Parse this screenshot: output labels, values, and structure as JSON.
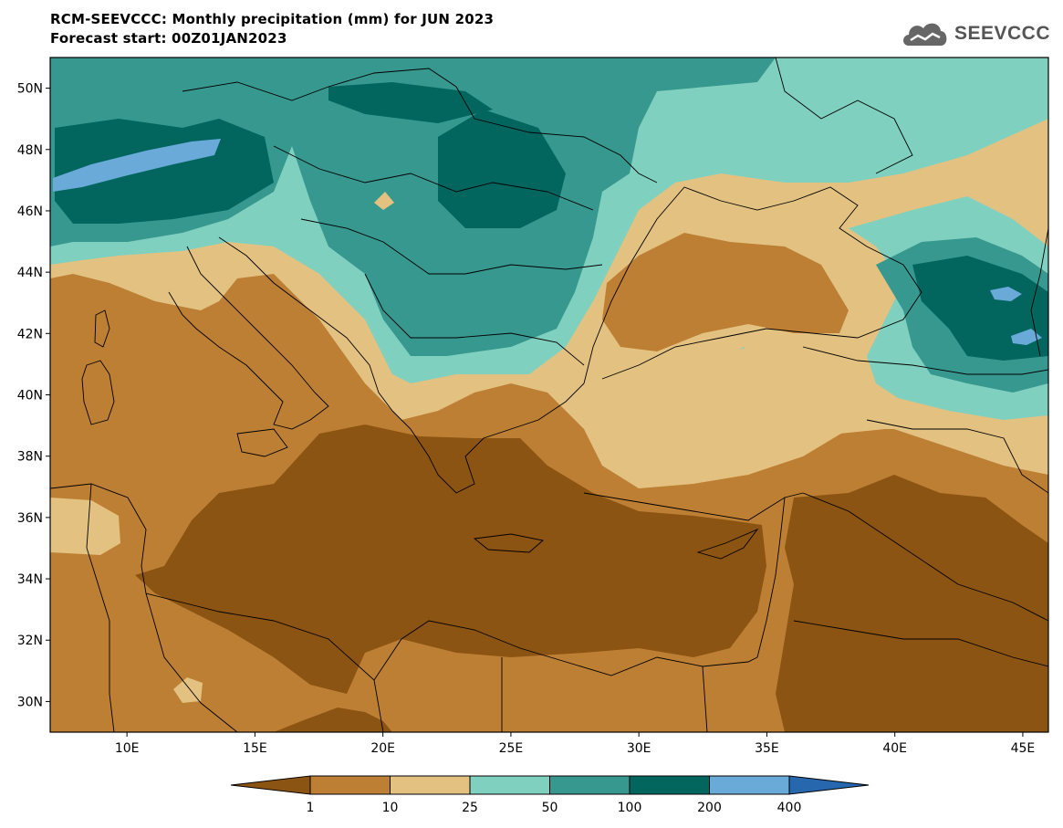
{
  "title_line1": "RCM-SEEVCCC: Monthly precipitation (mm) for JUN 2023",
  "title_line2": "Forecast start: 00Z01JAN2023",
  "logo_text": "SEEVCCC",
  "map": {
    "lon_range": [
      7,
      46
    ],
    "lat_range": [
      29,
      51
    ],
    "lat_ticks": [
      {
        "value": 50,
        "label": "50N"
      },
      {
        "value": 48,
        "label": "48N"
      },
      {
        "value": 46,
        "label": "46N"
      },
      {
        "value": 44,
        "label": "44N"
      },
      {
        "value": 42,
        "label": "42N"
      },
      {
        "value": 40,
        "label": "40N"
      },
      {
        "value": 38,
        "label": "38N"
      },
      {
        "value": 36,
        "label": "36N"
      },
      {
        "value": 34,
        "label": "34N"
      },
      {
        "value": 32,
        "label": "32N"
      },
      {
        "value": 30,
        "label": "30N"
      }
    ],
    "lon_ticks": [
      {
        "value": 10,
        "label": "10E"
      },
      {
        "value": 15,
        "label": "15E"
      },
      {
        "value": 20,
        "label": "20E"
      },
      {
        "value": 25,
        "label": "25E"
      },
      {
        "value": 30,
        "label": "30E"
      },
      {
        "value": 35,
        "label": "35E"
      },
      {
        "value": 40,
        "label": "40E"
      },
      {
        "value": 45,
        "label": "45E"
      }
    ]
  },
  "legend": {
    "colors": [
      "#8c5412",
      "#bd7f33",
      "#e3c281",
      "#80d0c0",
      "#379890",
      "#02665e",
      "#6aaad8",
      "#2667ad"
    ],
    "labels": [
      "1",
      "10",
      "25",
      "50",
      "100",
      "200",
      "400"
    ]
  }
}
